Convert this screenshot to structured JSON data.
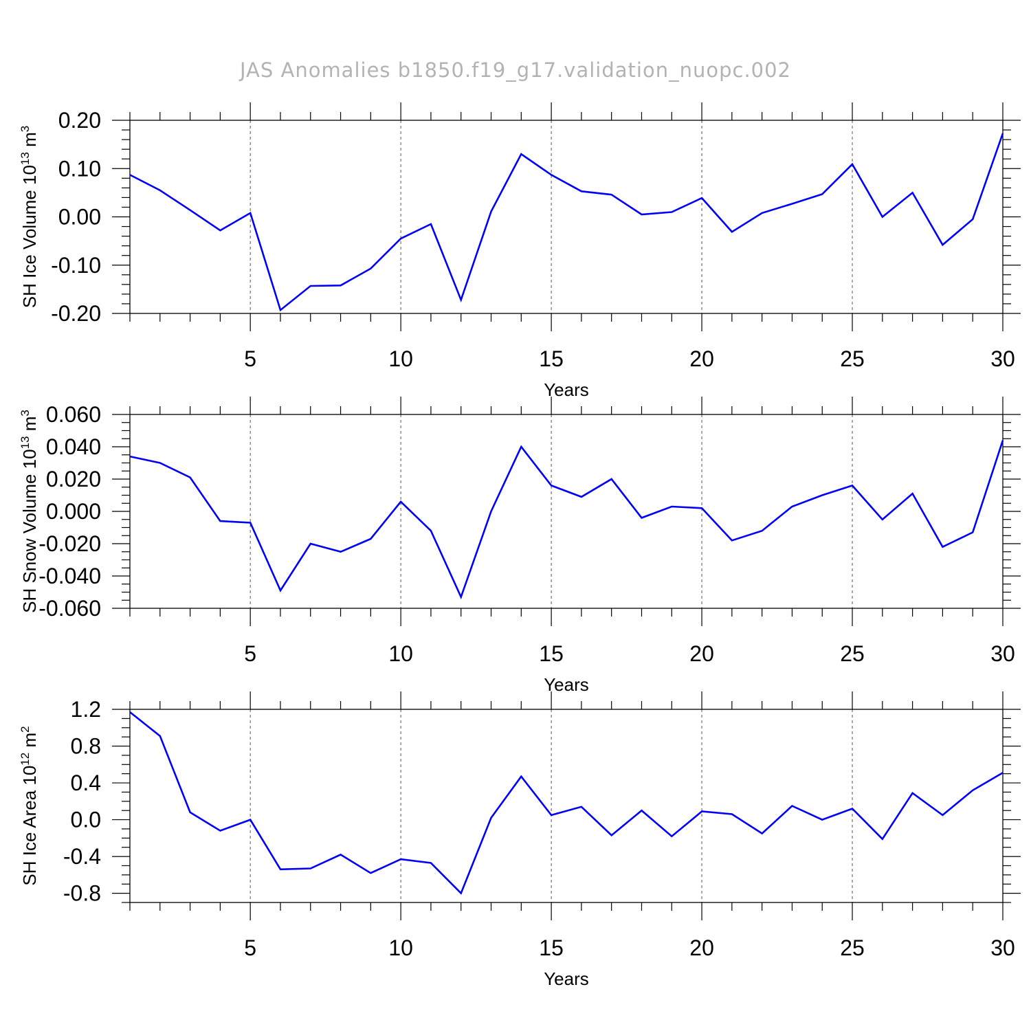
{
  "title": "JAS Anomalies b1850.f19_g17.validation_nuopc.002",
  "chart_data": [
    {
      "type": "line",
      "id": "ice-volume",
      "ylabel": {
        "main": "SH Ice Volume 10",
        "exp": "13",
        "unit": " m",
        "unit_exp": "3"
      },
      "xlabel": "Years",
      "xlim": [
        1,
        30
      ],
      "ylim": [
        -0.2,
        0.2
      ],
      "xticks": [
        5,
        10,
        15,
        20,
        25,
        30
      ],
      "xtick_labels": [
        "5",
        "10",
        "15",
        "20",
        "25",
        "30"
      ],
      "yticks": [
        -0.2,
        -0.1,
        0.0,
        0.1,
        0.2
      ],
      "ytick_labels": [
        "-0.20",
        "-0.10",
        "0.00",
        "0.10",
        "0.20"
      ],
      "y_minor_step": 0.02,
      "grid_x": [
        5,
        10,
        15,
        20,
        25
      ],
      "series": [
        {
          "name": "SH Ice Volume",
          "color": "#0000ff",
          "x": [
            1,
            2,
            3,
            4,
            5,
            6,
            7,
            8,
            9,
            10,
            11,
            12,
            13,
            14,
            15,
            16,
            17,
            18,
            19,
            20,
            21,
            22,
            23,
            24,
            25,
            26,
            27,
            28,
            29,
            30
          ],
          "values": [
            0.087,
            0.055,
            0.014,
            -0.028,
            0.008,
            -0.193,
            -0.143,
            -0.142,
            -0.107,
            -0.045,
            -0.015,
            -0.172,
            0.011,
            0.13,
            0.087,
            0.053,
            0.046,
            0.005,
            0.01,
            0.039,
            -0.031,
            0.008,
            0.027,
            0.047,
            0.109,
            0.0,
            0.05,
            -0.058,
            -0.005,
            0.173
          ]
        }
      ]
    },
    {
      "type": "line",
      "id": "snow-volume",
      "ylabel": {
        "main": "SH Snow Volume 10",
        "exp": "13",
        "unit": " m",
        "unit_exp": "3"
      },
      "xlabel": "Years",
      "xlim": [
        1,
        30
      ],
      "ylim": [
        -0.06,
        0.06
      ],
      "xticks": [
        5,
        10,
        15,
        20,
        25,
        30
      ],
      "xtick_labels": [
        "5",
        "10",
        "15",
        "20",
        "25",
        "30"
      ],
      "yticks": [
        -0.06,
        -0.04,
        -0.02,
        0.0,
        0.02,
        0.04,
        0.06
      ],
      "ytick_labels": [
        "-0.060",
        "-0.040",
        "-0.020",
        "0.000",
        "0.020",
        "0.040",
        "0.060"
      ],
      "y_minor_step": 0.005,
      "grid_x": [
        5,
        10,
        15,
        20,
        25
      ],
      "series": [
        {
          "name": "SH Snow Volume",
          "color": "#0000ff",
          "x": [
            1,
            2,
            3,
            4,
            5,
            6,
            7,
            8,
            9,
            10,
            11,
            12,
            13,
            14,
            15,
            16,
            17,
            18,
            19,
            20,
            21,
            22,
            23,
            24,
            25,
            26,
            27,
            28,
            29,
            30
          ],
          "values": [
            0.034,
            0.03,
            0.021,
            -0.006,
            -0.007,
            -0.049,
            -0.02,
            -0.025,
            -0.017,
            0.006,
            -0.012,
            -0.053,
            0.0,
            0.04,
            0.016,
            0.009,
            0.02,
            -0.004,
            0.003,
            0.002,
            -0.018,
            -0.012,
            0.003,
            0.01,
            0.016,
            -0.005,
            0.011,
            -0.022,
            -0.013,
            0.044
          ]
        }
      ]
    },
    {
      "type": "line",
      "id": "ice-area",
      "ylabel": {
        "main": "SH Ice Area 10",
        "exp": "12",
        "unit": " m",
        "unit_exp": "2"
      },
      "xlabel": "Years",
      "xlim": [
        1,
        30
      ],
      "ylim": [
        -0.9,
        1.2
      ],
      "xticks": [
        5,
        10,
        15,
        20,
        25,
        30
      ],
      "xtick_labels": [
        "5",
        "10",
        "15",
        "20",
        "25",
        "30"
      ],
      "yticks": [
        -0.8,
        -0.4,
        0.0,
        0.4,
        0.8,
        1.2
      ],
      "ytick_labels": [
        "-0.8",
        "-0.4",
        "0.0",
        "0.4",
        "0.8",
        "1.2"
      ],
      "y_minor_step": 0.1,
      "grid_x": [
        5,
        10,
        15,
        20,
        25
      ],
      "series": [
        {
          "name": "SH Ice Area",
          "color": "#0000ff",
          "x": [
            1,
            2,
            3,
            4,
            5,
            6,
            7,
            8,
            9,
            10,
            11,
            12,
            13,
            14,
            15,
            16,
            17,
            18,
            19,
            20,
            21,
            22,
            23,
            24,
            25,
            26,
            27,
            28,
            29,
            30
          ],
          "values": [
            1.17,
            0.91,
            0.08,
            -0.12,
            0.0,
            -0.54,
            -0.53,
            -0.38,
            -0.58,
            -0.43,
            -0.47,
            -0.8,
            0.02,
            0.47,
            0.05,
            0.14,
            -0.17,
            0.1,
            -0.18,
            0.09,
            0.06,
            -0.15,
            0.15,
            0.0,
            0.12,
            -0.21,
            0.29,
            0.05,
            0.32,
            0.51
          ]
        }
      ]
    }
  ]
}
